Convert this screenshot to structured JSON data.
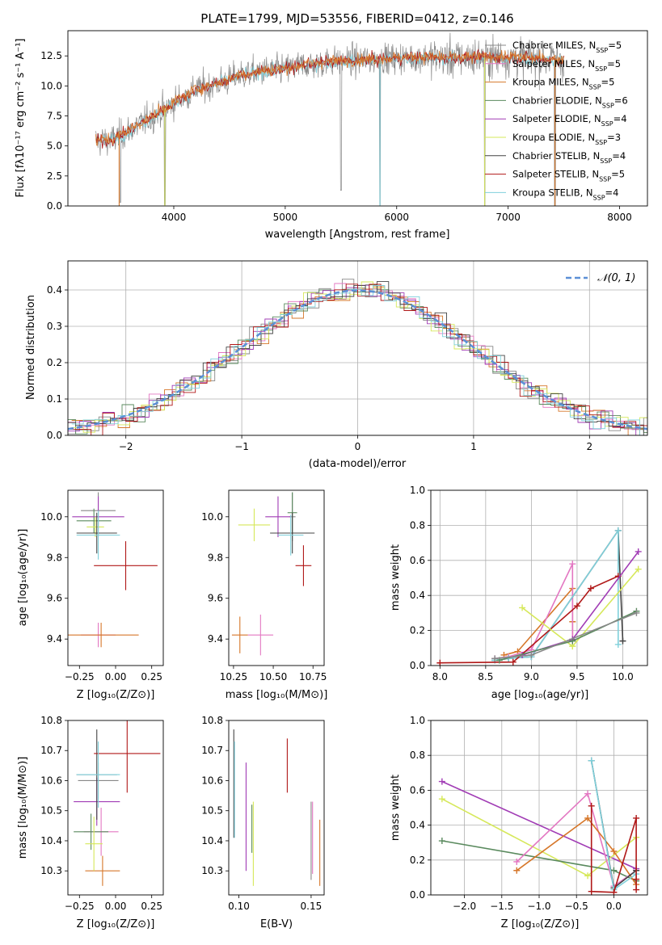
{
  "figure_title": "PLATE=1799, MJD=53556, FIBERID=0412, z=0.146",
  "colors": {
    "Chabrier MILES": "#888888",
    "Salpeter MILES": "#e377c2",
    "Kroupa MILES": "#d6772a",
    "Chabrier ELODIE": "#5a8a5e",
    "Salpeter ELODIE": "#a13cb5",
    "Kroupa ELODIE": "#d6e85a",
    "Chabrier STELIB": "#444444",
    "Salpeter STELIB": "#b01818",
    "Kroupa STELIB": "#7fd0db",
    "normal_curve": "#5b8fd6",
    "grid": "#b0b0b0"
  },
  "chart_data": [
    {
      "id": "spectrum",
      "type": "line",
      "title": "PLATE=1799, MJD=53556, FIBERID=0412, z=0.146",
      "xlabel": "wavelength [Angstrom, rest frame]",
      "ylabel": "Flux [fλ10⁻¹⁷ erg cm⁻² s⁻¹ A⁻¹]",
      "xlim": [
        3050,
        8250
      ],
      "ylim": [
        0,
        14.6
      ],
      "xticks": [
        4000,
        5000,
        6000,
        7000,
        8000
      ],
      "yticks": [
        0.0,
        2.5,
        5.0,
        7.5,
        10.0,
        12.5
      ],
      "ytick_labels": [
        "0.0",
        "2.5",
        "5.0",
        "7.5",
        "10.0",
        "12.5"
      ],
      "grid": false,
      "legend_position": "right",
      "legend": [
        "Chabrier MILES, N_SSP=5",
        "Salpeter MILES, N_SSP=5",
        "Kroupa MILES, N_SSP=5",
        "Chabrier ELODIE, N_SSP=6",
        "Salpeter ELODIE, N_SSP=4",
        "Kroupa ELODIE, N_SSP=3",
        "Chabrier STELIB, N_SSP=4",
        "Salpeter STELIB, N_SSP=5",
        "Kroupa STELIB, N_SSP=4"
      ],
      "continuum": [
        [
          3300,
          5.4
        ],
        [
          3450,
          5.5
        ],
        [
          3600,
          6.3
        ],
        [
          3800,
          7.4
        ],
        [
          4000,
          8.6
        ],
        [
          4200,
          9.7
        ],
        [
          4400,
          10.2
        ],
        [
          4600,
          10.9
        ],
        [
          4800,
          11.2
        ],
        [
          5000,
          11.4
        ],
        [
          5200,
          11.8
        ],
        [
          5400,
          12.0
        ],
        [
          5600,
          12.1
        ],
        [
          5800,
          12.2
        ],
        [
          6000,
          12.3
        ],
        [
          6200,
          12.4
        ],
        [
          6500,
          12.3
        ],
        [
          6800,
          12.4
        ],
        [
          7000,
          12.4
        ],
        [
          7200,
          12.3
        ],
        [
          7400,
          12.2
        ]
      ],
      "spectrum_range": [
        3300,
        7500
      ],
      "dips": [
        [
          3520,
          0.3
        ],
        [
          3920,
          0.1
        ],
        [
          5500,
          1.3
        ],
        [
          5850,
          0.1
        ],
        [
          6790,
          0.0
        ],
        [
          7420,
          0.0
        ]
      ]
    },
    {
      "id": "residuals",
      "type": "histogram",
      "xlabel": "(data-model)/error",
      "ylabel": "Normed distribution",
      "xlim": [
        -2.5,
        2.5
      ],
      "ylim": [
        0,
        0.48
      ],
      "xticks": [
        -2,
        -1,
        0,
        1,
        2
      ],
      "xtick_labels": [
        "−2",
        "−1",
        "0",
        "1",
        "2"
      ],
      "yticks": [
        0.0,
        0.1,
        0.2,
        0.3,
        0.4
      ],
      "ytick_labels": [
        "0.0",
        "0.1",
        "0.2",
        "0.3",
        "0.4"
      ],
      "grid": true,
      "legend_position": "top-right",
      "normal_label": "𝒩(0, 1)",
      "bin_width": 0.1
    },
    {
      "id": "age_vs_Z",
      "type": "errorbar",
      "xlabel": "Z [log₁₀(Z/Z⊙)]",
      "ylabel": "age  [log₁₀(age/yr)]",
      "xlim": [
        -0.33,
        0.33
      ],
      "ylim": [
        9.27,
        10.13
      ],
      "xticks": [
        -0.25,
        0.0,
        0.25
      ],
      "xtick_labels": [
        "−0.25",
        "0.00",
        "0.25"
      ],
      "yticks": [
        9.4,
        9.6,
        9.8,
        10.0
      ],
      "ytick_labels": [
        "9.4",
        "9.6",
        "9.8",
        "10.0"
      ],
      "points": [
        {
          "model": "Chabrier MILES",
          "x": -0.12,
          "xerr": 0.12,
          "y": 10.03,
          "yerr": 0.09
        },
        {
          "model": "Salpeter MILES",
          "x": -0.12,
          "xerr": 0.12,
          "y": 9.42,
          "yerr": 0.06
        },
        {
          "model": "Kroupa MILES",
          "x": -0.1,
          "xerr": 0.26,
          "y": 9.42,
          "yerr": 0.06
        },
        {
          "model": "Chabrier ELODIE",
          "x": -0.15,
          "xerr": 0.12,
          "y": 9.98,
          "yerr": 0.06
        },
        {
          "model": "Salpeter ELODIE",
          "x": -0.12,
          "xerr": 0.18,
          "y": 10.0,
          "yerr": 0.1
        },
        {
          "model": "Kroupa ELODIE",
          "x": -0.14,
          "xerr": 0.06,
          "y": 9.95,
          "yerr": 0.05
        },
        {
          "model": "Chabrier STELIB",
          "x": -0.13,
          "xerr": 0.14,
          "y": 9.92,
          "yerr": 0.1
        },
        {
          "model": "Salpeter STELIB",
          "x": 0.07,
          "xerr": 0.22,
          "y": 9.76,
          "yerr": 0.12
        },
        {
          "model": "Kroupa STELIB",
          "x": -0.12,
          "xerr": 0.15,
          "y": 9.91,
          "yerr": 0.12
        }
      ]
    },
    {
      "id": "age_vs_mass",
      "type": "errorbar",
      "xlabel": "mass [log₁₀(M/M⊙)]",
      "ylabel": "",
      "xlim": [
        10.22,
        10.82
      ],
      "ylim": [
        9.27,
        10.13
      ],
      "xticks": [
        10.25,
        10.5,
        10.75
      ],
      "xtick_labels": [
        "10.25",
        "10.50",
        "10.75"
      ],
      "yticks": [
        9.4,
        9.6,
        9.8,
        10.0
      ],
      "ytick_labels": [
        "9.4",
        "9.6",
        "9.8",
        "10.0"
      ],
      "points": [
        {
          "model": "Chabrier MILES",
          "x": 10.62,
          "xerr": 0.02,
          "y": 10.0,
          "yerr": 0.12
        },
        {
          "model": "Salpeter MILES",
          "x": 10.42,
          "xerr": 0.08,
          "y": 9.42,
          "yerr": 0.1
        },
        {
          "model": "Kroupa MILES",
          "x": 10.29,
          "xerr": 0.05,
          "y": 9.42,
          "yerr": 0.09
        },
        {
          "model": "Chabrier ELODIE",
          "x": 10.62,
          "xerr": 0.03,
          "y": 10.02,
          "yerr": 0.1
        },
        {
          "model": "Salpeter ELODIE",
          "x": 10.53,
          "xerr": 0.08,
          "y": 10.0,
          "yerr": 0.1
        },
        {
          "model": "Kroupa ELODIE",
          "x": 10.38,
          "xerr": 0.1,
          "y": 9.96,
          "yerr": 0.08
        },
        {
          "model": "Chabrier STELIB",
          "x": 10.62,
          "xerr": 0.14,
          "y": 9.92,
          "yerr": 0.1
        },
        {
          "model": "Salpeter STELIB",
          "x": 10.69,
          "xerr": 0.05,
          "y": 9.76,
          "yerr": 0.1
        },
        {
          "model": "Kroupa STELIB",
          "x": 10.61,
          "xerr": 0.08,
          "y": 9.91,
          "yerr": 0.1
        }
      ]
    },
    {
      "id": "weight_vs_age",
      "type": "line",
      "xlabel": "age  [log₁₀(age/yr)]",
      "ylabel": "mass weight",
      "xlim": [
        7.9,
        10.27
      ],
      "ylim": [
        0,
        1
      ],
      "xticks": [
        8.0,
        8.5,
        9.0,
        9.5,
        10.0
      ],
      "xtick_labels": [
        "8.0",
        "8.5",
        "9.0",
        "9.5",
        "10.0"
      ],
      "yticks": [
        0.0,
        0.2,
        0.4,
        0.6,
        0.8,
        1.0
      ],
      "ytick_labels": [
        "0.0",
        "0.2",
        "0.4",
        "0.6",
        "0.8",
        "1.0"
      ],
      "grid": true,
      "series": [
        {
          "model": "Kroupa MILES",
          "x": [
            8.7,
            8.85,
            9.45,
            9.45,
            9.45
          ],
          "y": [
            0.06,
            0.08,
            0.44,
            0.25,
            0.14
          ]
        },
        {
          "model": "Salpeter MILES",
          "x": [
            8.6,
            8.75,
            9.0,
            9.45,
            9.45
          ],
          "y": [
            0.04,
            0.05,
            0.09,
            0.58,
            0.14
          ]
        },
        {
          "model": "Chabrier STELIB",
          "x": [
            8.6,
            8.75,
            9.0,
            9.95,
            10.0
          ],
          "y": [
            0.03,
            0.04,
            0.05,
            0.77,
            0.14
          ]
        },
        {
          "model": "Kroupa STELIB",
          "x": [
            8.6,
            8.75,
            9.0,
            9.95,
            9.95
          ],
          "y": [
            0.03,
            0.04,
            0.05,
            0.77,
            0.12
          ]
        },
        {
          "model": "Salpeter STELIB",
          "x": [
            8.0,
            8.8,
            9.5,
            9.65,
            9.95
          ],
          "y": [
            0.015,
            0.02,
            0.34,
            0.44,
            0.51
          ]
        },
        {
          "model": "Salpeter ELODIE",
          "x": [
            8.9,
            9.45,
            10.17
          ],
          "y": [
            0.06,
            0.15,
            0.65
          ]
        },
        {
          "model": "Kroupa ELODIE",
          "x": [
            8.9,
            9.45,
            10.17
          ],
          "y": [
            0.33,
            0.11,
            0.55
          ]
        },
        {
          "model": "Chabrier ELODIE",
          "x": [
            8.65,
            9.45,
            10.15
          ],
          "y": [
            0.03,
            0.14,
            0.31
          ]
        },
        {
          "model": "Chabrier MILES",
          "x": [
            8.6,
            9.0,
            10.15
          ],
          "y": [
            0.04,
            0.06,
            0.3
          ]
        }
      ]
    },
    {
      "id": "mass_vs_Z",
      "type": "errorbar",
      "xlabel": "Z [log₁₀(Z/Z⊙)]",
      "ylabel": "mass [log₁₀(M/M⊙)]",
      "xlim": [
        -0.33,
        0.33
      ],
      "ylim": [
        10.22,
        10.8
      ],
      "xticks": [
        -0.25,
        0.0,
        0.25
      ],
      "xtick_labels": [
        "−0.25",
        "0.00",
        "0.25"
      ],
      "yticks": [
        10.3,
        10.4,
        10.5,
        10.6,
        10.7,
        10.8
      ],
      "ytick_labels": [
        "10.3",
        "10.4",
        "10.5",
        "10.6",
        "10.7",
        "10.8"
      ],
      "points": [
        {
          "model": "Chabrier MILES",
          "x": -0.12,
          "xerr": 0.14,
          "y": 10.6,
          "yerr": 0.06
        },
        {
          "model": "Salpeter MILES",
          "x": -0.1,
          "xerr": 0.12,
          "y": 10.43,
          "yerr": 0.08
        },
        {
          "model": "Kroupa MILES",
          "x": -0.09,
          "xerr": 0.12,
          "y": 10.3,
          "yerr": 0.05
        },
        {
          "model": "Chabrier ELODIE",
          "x": -0.17,
          "xerr": 0.12,
          "y": 10.43,
          "yerr": 0.06
        },
        {
          "model": "Salpeter ELODIE",
          "x": -0.13,
          "xerr": 0.16,
          "y": 10.53,
          "yerr": 0.08
        },
        {
          "model": "Kroupa ELODIE",
          "x": -0.15,
          "xerr": 0.06,
          "y": 10.39,
          "yerr": 0.09
        },
        {
          "model": "Chabrier STELIB",
          "x": -0.13,
          "xerr": 0.14,
          "y": 10.62,
          "yerr": 0.15
        },
        {
          "model": "Salpeter STELIB",
          "x": 0.08,
          "xerr": 0.23,
          "y": 10.69,
          "yerr": 0.13
        },
        {
          "model": "Kroupa STELIB",
          "x": -0.12,
          "xerr": 0.15,
          "y": 10.62,
          "yerr": 0.11
        }
      ]
    },
    {
      "id": "mass_vs_ebv",
      "type": "errorbar",
      "xlabel": "E(B-V)",
      "ylabel": "",
      "xlim": [
        0.093,
        0.159
      ],
      "ylim": [
        10.22,
        10.8
      ],
      "xticks": [
        0.1,
        0.15
      ],
      "xtick_labels": [
        "0.10",
        "0.15"
      ],
      "yticks": [
        10.3,
        10.4,
        10.5,
        10.6,
        10.7,
        10.8
      ],
      "ytick_labels": [
        "10.3",
        "10.4",
        "10.5",
        "10.6",
        "10.7",
        "10.8"
      ],
      "points": [
        {
          "model": "Chabrier STELIB",
          "x": 0.0965,
          "xerr": 0.0,
          "y": 10.59,
          "yerr": 0.18
        },
        {
          "model": "Kroupa STELIB",
          "x": 0.097,
          "xerr": 0.0,
          "y": 10.57,
          "yerr": 0.16
        },
        {
          "model": "Salpeter ELODIE",
          "x": 0.105,
          "xerr": 0.0,
          "y": 10.48,
          "yerr": 0.18
        },
        {
          "model": "Chabrier ELODIE",
          "x": 0.109,
          "xerr": 0.0,
          "y": 10.44,
          "yerr": 0.08
        },
        {
          "model": "Kroupa ELODIE",
          "x": 0.11,
          "xerr": 0.0,
          "y": 10.39,
          "yerr": 0.14
        },
        {
          "model": "Salpeter STELIB",
          "x": 0.1335,
          "xerr": 0.0,
          "y": 10.65,
          "yerr": 0.09
        },
        {
          "model": "Chabrier MILES",
          "x": 0.15,
          "xerr": 0.0,
          "y": 10.4,
          "yerr": 0.13
        },
        {
          "model": "Salpeter MILES",
          "x": 0.151,
          "xerr": 0.0,
          "y": 10.41,
          "yerr": 0.12
        },
        {
          "model": "Kroupa MILES",
          "x": 0.156,
          "xerr": 0.0,
          "y": 10.36,
          "yerr": 0.11
        }
      ]
    },
    {
      "id": "weight_vs_Z",
      "type": "line",
      "xlabel": "Z [log₁₀(Z/Z⊙)]",
      "ylabel": "mass weight",
      "xlim": [
        -2.45,
        0.45
      ],
      "ylim": [
        0,
        1
      ],
      "xticks": [
        -2.0,
        -1.5,
        -1.0,
        -0.5,
        0.0
      ],
      "xtick_labels": [
        "−2.0",
        "−1.5",
        "−1.0",
        "−0.5",
        "0.0"
      ],
      "yticks": [
        0.0,
        0.2,
        0.4,
        0.6,
        0.8,
        1.0
      ],
      "ytick_labels": [
        "0.0",
        "0.2",
        "0.4",
        "0.6",
        "0.8",
        "1.0"
      ],
      "grid": true,
      "series": [
        {
          "model": "Salpeter ELODIE",
          "x": [
            -2.3,
            0.3
          ],
          "y": [
            0.65,
            0.15
          ]
        },
        {
          "model": "Kroupa ELODIE",
          "x": [
            -2.3,
            -0.35,
            0.3
          ],
          "y": [
            0.55,
            0.11,
            0.33
          ]
        },
        {
          "model": "Chabrier ELODIE",
          "x": [
            -2.3,
            0.0,
            0.3
          ],
          "y": [
            0.31,
            0.14,
            0.08
          ]
        },
        {
          "model": "Salpeter MILES",
          "x": [
            -1.3,
            -0.35,
            0.0,
            0.3
          ],
          "y": [
            0.19,
            0.58,
            0.05,
            0.14
          ]
        },
        {
          "model": "Kroupa MILES",
          "x": [
            -1.3,
            -0.35,
            0.0,
            0.3
          ],
          "y": [
            0.14,
            0.44,
            0.25,
            0.06
          ]
        },
        {
          "model": "Chabrier STELIB",
          "x": [
            -0.3,
            0.0,
            0.3
          ],
          "y": [
            0.77,
            0.04,
            0.14
          ]
        },
        {
          "model": "Kroupa STELIB",
          "x": [
            -0.3,
            0.0,
            0.3
          ],
          "y": [
            0.77,
            0.03,
            0.12
          ]
        },
        {
          "model": "Salpeter STELIB",
          "x": [
            -0.3,
            -0.3,
            0.0,
            0.3,
            0.3,
            0.3
          ],
          "y": [
            0.51,
            0.02,
            0.015,
            0.44,
            0.09,
            0.03
          ]
        }
      ]
    }
  ]
}
